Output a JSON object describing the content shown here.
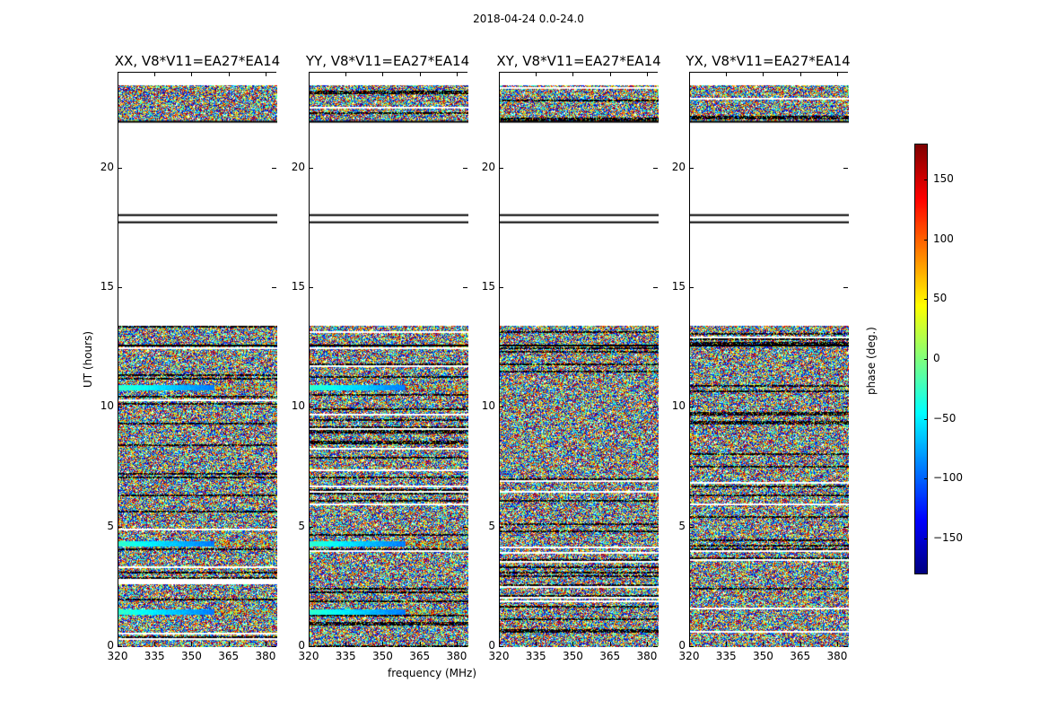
{
  "figure": {
    "suptitle": "2018-04-24 0.0-24.0",
    "xlabel": "frequency (MHz)",
    "ylabel": "UT (hours)"
  },
  "colorbar": {
    "label": "phase (deg.)",
    "range": [
      -180,
      180
    ],
    "ticks": [
      -150,
      -100,
      -50,
      0,
      50,
      100,
      150
    ],
    "colormap": "jet"
  },
  "chart_data": {
    "type": "heatmap",
    "title": "2018-04-24 0.0-24.0",
    "xlabel": "frequency (MHz)",
    "ylabel": "UT (hours)",
    "xlim": [
      320,
      384.4
    ],
    "ylim": [
      0,
      24
    ],
    "xticks": [
      320,
      335,
      350,
      365,
      380
    ],
    "yticks": [
      0,
      5,
      10,
      15,
      20
    ],
    "value": "phase (deg.)",
    "vrange": [
      -180,
      180
    ],
    "panels": [
      {
        "title": "XX, V8*V11=EA27*EA14",
        "coherent_bands": [
          [
            4.2,
            4.5
          ],
          [
            1.4,
            1.6
          ],
          [
            10.8,
            11.0
          ]
        ]
      },
      {
        "title": "YY, V8*V11=EA27*EA14",
        "coherent_bands": [
          [
            4.2,
            4.5
          ],
          [
            1.4,
            1.6
          ],
          [
            10.8,
            11.0
          ]
        ]
      },
      {
        "title": "XY, V8*V11=EA27*EA14",
        "coherent_bands": []
      },
      {
        "title": "YX, V8*V11=EA27*EA14",
        "coherent_bands": []
      }
    ],
    "noise_ranges_hours": [
      [
        0,
        13.5
      ],
      [
        22.0,
        23.5
      ]
    ],
    "flagged_ranges_hours": [
      [
        13.5,
        17.7
      ],
      [
        18.3,
        21.9
      ],
      [
        23.5,
        24
      ]
    ],
    "black_lines_hours": [
      17.75,
      18.05,
      21.95,
      12.6
    ]
  }
}
